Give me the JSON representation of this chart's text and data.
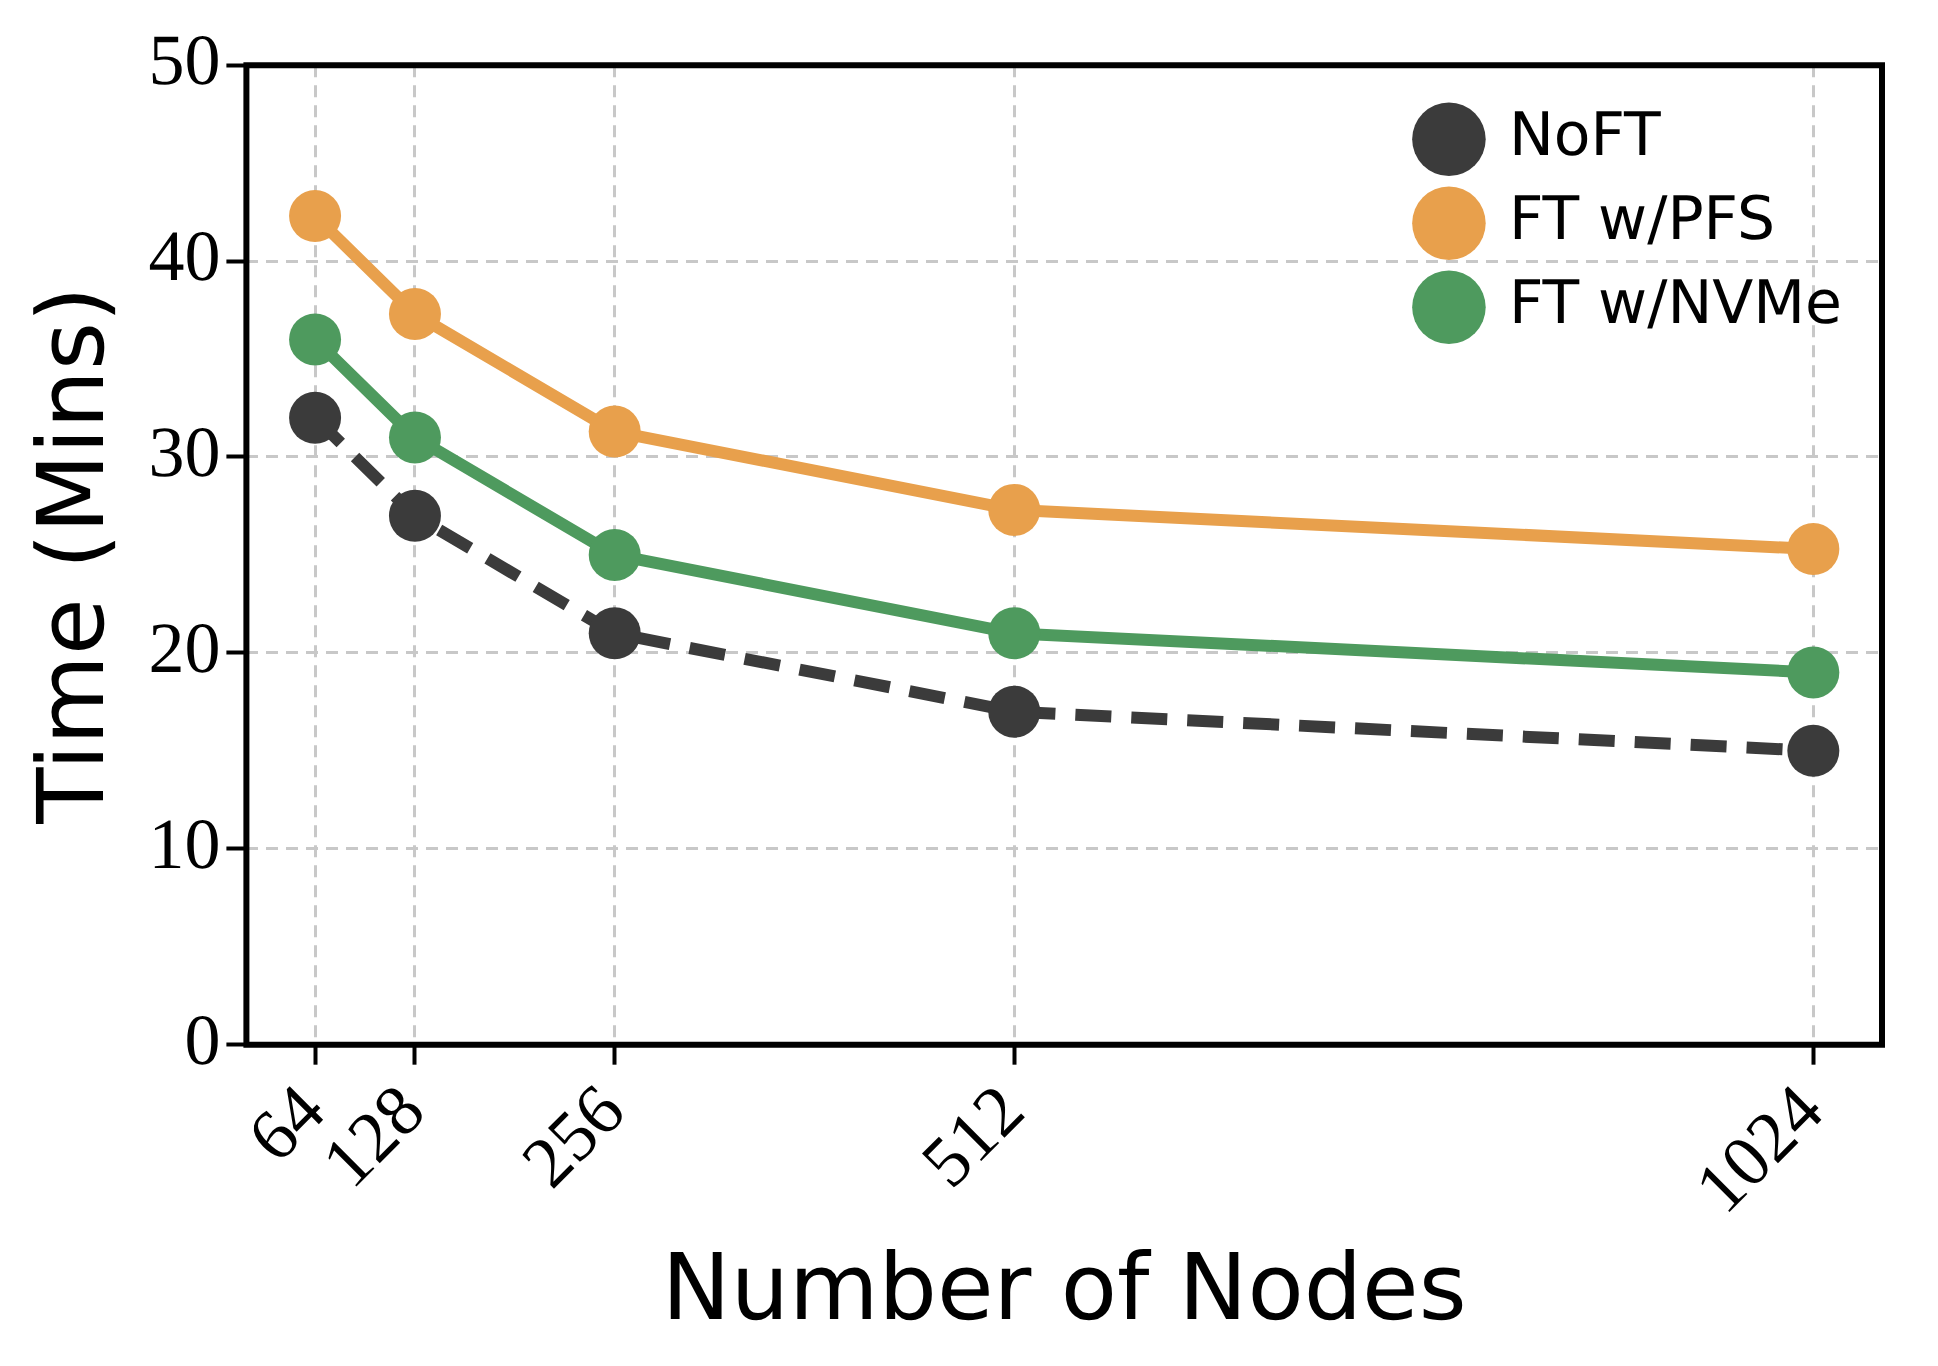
{
  "chart_data": {
    "type": "line",
    "xlabel": "Number of Nodes",
    "ylabel": "Time (Mins)",
    "x": [
      64,
      128,
      256,
      512,
      1024
    ],
    "series": [
      {
        "name": "NoFT",
        "color": "#3b3b3b",
        "values": [
          32,
          27,
          21,
          17,
          15
        ],
        "line_style": "dashed"
      },
      {
        "name": "FT w/PFS",
        "color": "#e8a04c",
        "values": [
          42.3,
          37.3,
          31.3,
          27.3,
          25.3
        ]
      },
      {
        "name": "FT w/NVMe",
        "color": "#4e9a5e",
        "values": [
          36,
          31,
          25,
          21,
          19
        ]
      }
    ],
    "xlim": [
      20,
      1068
    ],
    "xticks": [
      64,
      128,
      256,
      512,
      1024
    ],
    "ylim": [
      0,
      50
    ],
    "yticks": [
      0,
      10,
      20,
      30,
      40,
      50
    ],
    "grid": true,
    "legend": "top right",
    "marker": "circle",
    "line_style": "solid"
  }
}
